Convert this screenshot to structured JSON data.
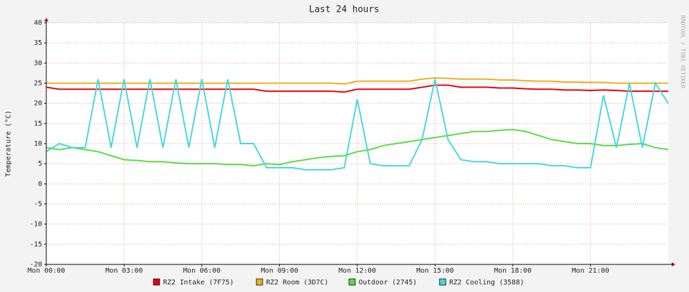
{
  "chart_data": {
    "type": "line",
    "title": "Last 24 hours",
    "y_label": "Temperature (°C)",
    "watermark": "RRDTOOL / TOBI OETIKER",
    "grid": true,
    "xlim": [
      0,
      24
    ],
    "xticks": [
      {
        "value": 0,
        "label": "Mon 00:00"
      },
      {
        "value": 3,
        "label": "Mon 03:00"
      },
      {
        "value": 6,
        "label": "Mon 06:00"
      },
      {
        "value": 9,
        "label": "Mon 09:00"
      },
      {
        "value": 12,
        "label": "Mon 12:00"
      },
      {
        "value": 15,
        "label": "Mon 15:00"
      },
      {
        "value": 18,
        "label": "Mon 18:00"
      },
      {
        "value": 21,
        "label": "Mon 21:00"
      }
    ],
    "ylim": [
      -20,
      40
    ],
    "yticks": [
      -20,
      -15,
      -10,
      -5,
      0,
      5,
      10,
      15,
      20,
      25,
      30,
      35,
      40
    ],
    "x": [
      0,
      0.5,
      1,
      1.5,
      2,
      2.5,
      3,
      3.5,
      4,
      4.5,
      5,
      5.5,
      6,
      6.5,
      7,
      7.5,
      8,
      8.5,
      9,
      9.5,
      10,
      10.5,
      11,
      11.5,
      12,
      12.5,
      13,
      13.5,
      14,
      14.5,
      15,
      15.5,
      16,
      16.5,
      17,
      17.5,
      18,
      18.5,
      19,
      19.5,
      20,
      20.5,
      21,
      21.5,
      22,
      22.5,
      23,
      23.5,
      24
    ],
    "series": [
      {
        "name": "RZ2 Intake (7F75)",
        "color": "#e8000b",
        "values": [
          24,
          23.5,
          23.5,
          23.5,
          23.5,
          23.5,
          23.5,
          23.5,
          23.5,
          23.5,
          23.5,
          23.5,
          23.5,
          23.5,
          23.5,
          23.5,
          23.5,
          23,
          23,
          23,
          23,
          23,
          23,
          22.8,
          23.5,
          23.5,
          23.5,
          23.5,
          23.5,
          24,
          24.5,
          24.5,
          24,
          24,
          24,
          23.8,
          23.8,
          23.6,
          23.5,
          23.5,
          23.3,
          23.3,
          23.2,
          23.3,
          23.2,
          23,
          23,
          23,
          23
        ]
      },
      {
        "name": "RZ2 Room (3D7C)",
        "color": "#e8b020",
        "values": [
          25,
          25,
          25,
          25,
          25,
          25,
          25,
          25,
          25,
          25,
          25,
          25,
          25,
          25,
          25,
          25,
          25,
          25,
          25,
          25,
          25,
          25,
          25,
          24.8,
          25.5,
          25.5,
          25.5,
          25.5,
          25.5,
          26,
          26.3,
          26.2,
          26,
          26,
          26,
          25.8,
          25.8,
          25.6,
          25.5,
          25.5,
          25.3,
          25.3,
          25.2,
          25.2,
          25,
          25,
          25,
          25,
          25
        ]
      },
      {
        "name": "Outdoor (2745)",
        "color": "#55dd44",
        "values": [
          9,
          8.5,
          9,
          8.5,
          8,
          7,
          6,
          5.8,
          5.5,
          5.5,
          5.2,
          5,
          5,
          5,
          4.8,
          4.8,
          4.5,
          5,
          4.8,
          5.5,
          6,
          6.5,
          6.8,
          7,
          8,
          8.5,
          9.5,
          10,
          10.5,
          11,
          11.5,
          12,
          12.5,
          13,
          13,
          13.3,
          13.5,
          13,
          12,
          11,
          10.5,
          10,
          10,
          9.5,
          9.5,
          9.8,
          10,
          9,
          8.5
        ]
      },
      {
        "name": "RZ2 Cooling (3588)",
        "color": "#44d8e0",
        "values": [
          8,
          10,
          9,
          9,
          26,
          9,
          26,
          9,
          26,
          9,
          26,
          9,
          26,
          9,
          26,
          10,
          10,
          4,
          4,
          4,
          3.5,
          3.5,
          3.5,
          4,
          21,
          5,
          4.5,
          4.5,
          4.5,
          11,
          26,
          11,
          6,
          5.5,
          5.5,
          5,
          5,
          5,
          5,
          4.5,
          4.5,
          4,
          4,
          22,
          9,
          25,
          9,
          25,
          20
        ]
      }
    ]
  }
}
